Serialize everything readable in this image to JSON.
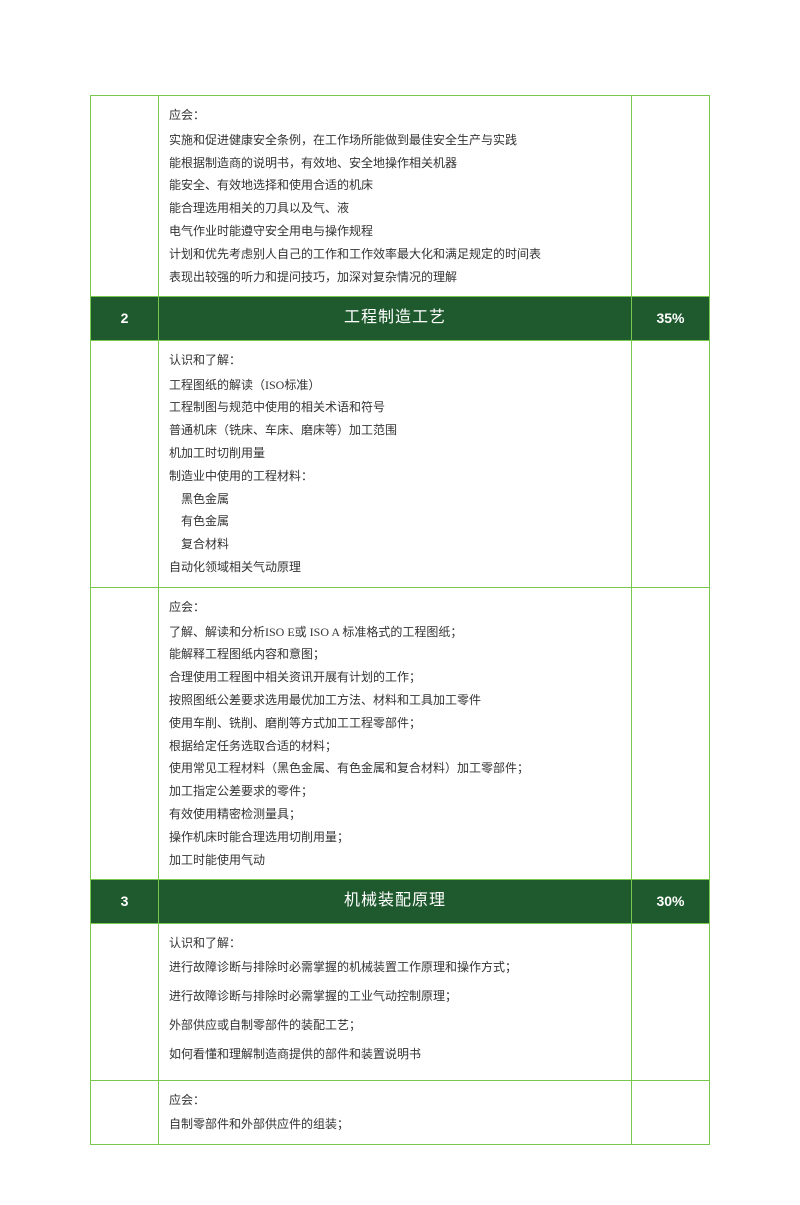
{
  "colors": {
    "border": "#78c850",
    "header_bg": "#1f5a2e",
    "header_fg": "#ffffff",
    "text": "#333333"
  },
  "sections": [
    {
      "row_type": "content",
      "label": "应会：",
      "lines": [
        "实施和促进健康安全条例，在工作场所能做到最佳安全生产与实践",
        "能根据制造商的说明书，有效地、安全地操作相关机器",
        "能安全、有效地选择和使用合适的机床",
        "能合理选用相关的刀具以及气、液",
        "电气作业时能遵守安全用电与操作规程",
        "计划和优先考虑别人自己的工作和工作效率最大化和满足规定的时间表",
        "表现出较强的听力和提问技巧，加深对复杂情况的理解"
      ]
    },
    {
      "row_type": "header",
      "num": "2",
      "title": "工程制造工艺",
      "pct": "35%"
    },
    {
      "row_type": "content",
      "label": "认识和了解：",
      "lines": [
        "工程图纸的解读（ISO标准）",
        "工程制图与规范中使用的相关术语和符号",
        "普通机床（铣床、车床、磨床等）加工范围",
        "机加工时切削用量",
        "制造业中使用的工程材料：",
        "　黑色金属",
        "　有色金属",
        "　复合材料",
        "自动化领域相关气动原理"
      ]
    },
    {
      "row_type": "content",
      "label": "应会：",
      "lines": [
        "了解、解读和分析ISO E或 ISO A 标准格式的工程图纸；",
        "能解释工程图纸内容和意图；",
        "合理使用工程图中相关资讯开展有计划的工作；",
        "按照图纸公差要求选用最优加工方法、材料和工具加工零件",
        "使用车削、铣削、磨削等方式加工工程零部件；",
        "根据给定任务选取合适的材料；",
        "使用常见工程材料（黑色金属、有色金属和复合材料）加工零部件；",
        "加工指定公差要求的零件；",
        "有效使用精密检测量具；",
        "操作机床时能合理选用切削用量；",
        "加工时能使用气动"
      ]
    },
    {
      "row_type": "header",
      "num": "3",
      "title": "机械装配原理",
      "pct": "30%"
    },
    {
      "row_type": "content_para",
      "label": "认识和了解：",
      "lines": [
        "进行故障诊断与排除时必需掌握的机械装置工作原理和操作方式；",
        "进行故障诊断与排除时必需掌握的工业气动控制原理；",
        "外部供应或自制零部件的装配工艺；",
        "如何看懂和理解制造商提供的部件和装置说明书"
      ]
    },
    {
      "row_type": "content",
      "label": "应会：",
      "lines": [
        "自制零部件和外部供应件的组装；"
      ]
    }
  ]
}
